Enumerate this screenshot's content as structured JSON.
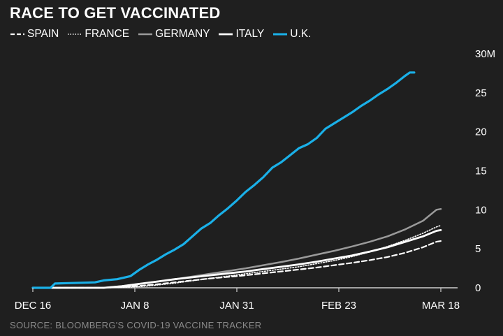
{
  "chart_data": {
    "type": "line",
    "title": "RACE TO GET VACCINATED",
    "source": "SOURCE: BLOOMBERG'S COVID-19 VACCINE TRACKER",
    "x_ticks": [
      "DEC 16",
      "JAN 8",
      "JAN 31",
      "FEB 23",
      "MAR 18"
    ],
    "y_ticks": [
      "0",
      "5",
      "10",
      "15",
      "20",
      "25",
      "30M"
    ],
    "ylim": [
      0,
      30
    ],
    "xlim_days": [
      0,
      92
    ],
    "grid": false,
    "legend_position": "top-left",
    "series": [
      {
        "name": "SPAIN",
        "style": "dashed",
        "color": "#ffffff",
        "points": [
          [
            0,
            0
          ],
          [
            16,
            0
          ],
          [
            20,
            0.1
          ],
          [
            24,
            0.25
          ],
          [
            28,
            0.45
          ],
          [
            32,
            0.7
          ],
          [
            36,
            0.95
          ],
          [
            40,
            1.2
          ],
          [
            44,
            1.4
          ],
          [
            48,
            1.6
          ],
          [
            52,
            1.85
          ],
          [
            56,
            2.1
          ],
          [
            60,
            2.35
          ],
          [
            64,
            2.6
          ],
          [
            68,
            2.9
          ],
          [
            72,
            3.2
          ],
          [
            76,
            3.55
          ],
          [
            80,
            3.95
          ],
          [
            84,
            4.5
          ],
          [
            88,
            5.2
          ],
          [
            91,
            5.9
          ],
          [
            92,
            6.0
          ]
        ]
      },
      {
        "name": "FRANCE",
        "style": "dotted",
        "color": "#ffffff",
        "points": [
          [
            0,
            0
          ],
          [
            16,
            0
          ],
          [
            20,
            0.05
          ],
          [
            24,
            0.15
          ],
          [
            28,
            0.35
          ],
          [
            32,
            0.6
          ],
          [
            36,
            0.9
          ],
          [
            40,
            1.2
          ],
          [
            44,
            1.5
          ],
          [
            48,
            1.8
          ],
          [
            52,
            2.1
          ],
          [
            56,
            2.4
          ],
          [
            60,
            2.7
          ],
          [
            64,
            3.1
          ],
          [
            68,
            3.5
          ],
          [
            72,
            4.0
          ],
          [
            76,
            4.6
          ],
          [
            80,
            5.3
          ],
          [
            84,
            6.1
          ],
          [
            88,
            7.0
          ],
          [
            91,
            7.8
          ],
          [
            92,
            8.0
          ]
        ]
      },
      {
        "name": "GERMANY",
        "style": "solid",
        "color": "#9a9a9a",
        "points": [
          [
            0,
            0
          ],
          [
            16,
            0
          ],
          [
            20,
            0.2
          ],
          [
            24,
            0.5
          ],
          [
            28,
            0.8
          ],
          [
            32,
            1.1
          ],
          [
            36,
            1.45
          ],
          [
            40,
            1.8
          ],
          [
            44,
            2.15
          ],
          [
            48,
            2.5
          ],
          [
            52,
            2.9
          ],
          [
            56,
            3.3
          ],
          [
            60,
            3.75
          ],
          [
            64,
            4.25
          ],
          [
            68,
            4.75
          ],
          [
            72,
            5.3
          ],
          [
            76,
            5.9
          ],
          [
            80,
            6.6
          ],
          [
            84,
            7.5
          ],
          [
            88,
            8.6
          ],
          [
            91,
            10.0
          ],
          [
            92,
            10.1
          ]
        ]
      },
      {
        "name": "ITALY",
        "style": "solid",
        "color": "#ffffff",
        "points": [
          [
            0,
            0
          ],
          [
            16,
            0
          ],
          [
            20,
            0.2
          ],
          [
            24,
            0.5
          ],
          [
            28,
            0.8
          ],
          [
            32,
            1.1
          ],
          [
            36,
            1.35
          ],
          [
            40,
            1.6
          ],
          [
            44,
            1.85
          ],
          [
            48,
            2.1
          ],
          [
            52,
            2.4
          ],
          [
            56,
            2.7
          ],
          [
            60,
            3.0
          ],
          [
            64,
            3.35
          ],
          [
            68,
            3.75
          ],
          [
            72,
            4.15
          ],
          [
            76,
            4.65
          ],
          [
            80,
            5.2
          ],
          [
            84,
            5.9
          ],
          [
            88,
            6.6
          ],
          [
            91,
            7.3
          ],
          [
            92,
            7.4
          ]
        ]
      },
      {
        "name": "U.K.",
        "style": "solid",
        "color": "#1ab0e8",
        "points": [
          [
            0,
            0
          ],
          [
            4,
            0
          ],
          [
            5,
            0.55
          ],
          [
            8,
            0.6
          ],
          [
            14,
            0.7
          ],
          [
            16,
            0.95
          ],
          [
            19,
            1.1
          ],
          [
            22,
            1.5
          ],
          [
            24,
            2.3
          ],
          [
            26,
            3.0
          ],
          [
            28,
            3.6
          ],
          [
            30,
            4.3
          ],
          [
            32,
            4.9
          ],
          [
            34,
            5.6
          ],
          [
            36,
            6.6
          ],
          [
            38,
            7.6
          ],
          [
            40,
            8.3
          ],
          [
            42,
            9.3
          ],
          [
            44,
            10.2
          ],
          [
            46,
            11.2
          ],
          [
            48,
            12.3
          ],
          [
            50,
            13.2
          ],
          [
            52,
            14.2
          ],
          [
            54,
            15.4
          ],
          [
            56,
            16.1
          ],
          [
            58,
            17.0
          ],
          [
            60,
            17.9
          ],
          [
            62,
            18.4
          ],
          [
            64,
            19.2
          ],
          [
            66,
            20.4
          ],
          [
            68,
            21.1
          ],
          [
            70,
            21.8
          ],
          [
            72,
            22.5
          ],
          [
            74,
            23.3
          ],
          [
            76,
            24.0
          ],
          [
            78,
            24.8
          ],
          [
            80,
            25.5
          ],
          [
            82,
            26.3
          ],
          [
            84,
            27.2
          ],
          [
            85,
            27.6
          ],
          [
            86,
            27.6
          ]
        ]
      }
    ]
  }
}
